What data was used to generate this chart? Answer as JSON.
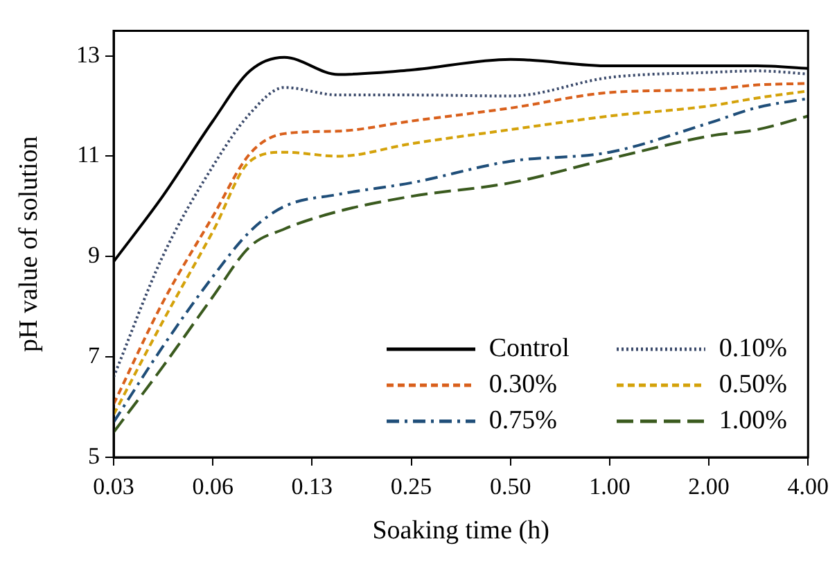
{
  "chart_data": {
    "type": "line",
    "xlabel": "Soaking time (h)",
    "ylabel": "pH value of solution",
    "x": [
      0.03125,
      0.044,
      0.0625,
      0.081,
      0.103,
      0.15,
      0.25,
      0.5,
      1,
      2,
      2.8,
      4
    ],
    "series": [
      {
        "name": "Control",
        "color": "#000000",
        "line_style": "solid",
        "values": [
          8.9,
          10.2,
          11.7,
          12.7,
          12.97,
          12.63,
          12.72,
          12.93,
          12.8,
          12.8,
          12.8,
          12.75
        ]
      },
      {
        "name": "0.10%",
        "color": "#3b4a6b",
        "line_style": "dotted",
        "values": [
          6.6,
          9.0,
          10.8,
          11.85,
          12.37,
          12.22,
          12.22,
          12.2,
          12.57,
          12.67,
          12.7,
          12.64
        ]
      },
      {
        "name": "0.30%",
        "color": "#d9601c",
        "line_style": "dashed",
        "values": [
          6.06,
          8.08,
          9.8,
          11.05,
          11.45,
          11.5,
          11.7,
          11.96,
          12.27,
          12.33,
          12.42,
          12.45
        ]
      },
      {
        "name": "0.50%",
        "color": "#d4a20a",
        "line_style": "dashed",
        "values": [
          5.85,
          7.7,
          9.5,
          10.9,
          11.08,
          11.0,
          11.25,
          11.53,
          11.8,
          12.0,
          12.16,
          12.3
        ]
      },
      {
        "name": "0.75%",
        "color": "#1f4e79",
        "line_style": "dashdot",
        "values": [
          5.7,
          7.2,
          8.6,
          9.5,
          10.0,
          10.24,
          10.47,
          10.9,
          11.08,
          11.66,
          11.97,
          12.15
        ]
      },
      {
        "name": "1.00%",
        "color": "#3a5a1e",
        "line_style": "longdash",
        "values": [
          5.5,
          6.8,
          8.2,
          9.2,
          9.55,
          9.9,
          10.2,
          10.47,
          10.95,
          11.4,
          11.53,
          11.8
        ]
      }
    ],
    "log": "x",
    "xlim": [
      0.03125,
      4
    ],
    "xticks": [
      {
        "value": 0.03125,
        "label": "0.03"
      },
      {
        "value": 0.0625,
        "label": "0.06"
      },
      {
        "value": 0.125,
        "label": "0.13"
      },
      {
        "value": 0.25,
        "label": "0.25"
      },
      {
        "value": 0.5,
        "label": "0.50"
      },
      {
        "value": 1,
        "label": "1.00"
      },
      {
        "value": 2,
        "label": "2.00"
      },
      {
        "value": 4,
        "label": "4.00"
      }
    ],
    "ylim": [
      5,
      13.5
    ],
    "yticks": [
      5,
      7,
      9,
      11,
      13
    ],
    "grid": false,
    "legend": "bottom right",
    "marker": "none"
  }
}
